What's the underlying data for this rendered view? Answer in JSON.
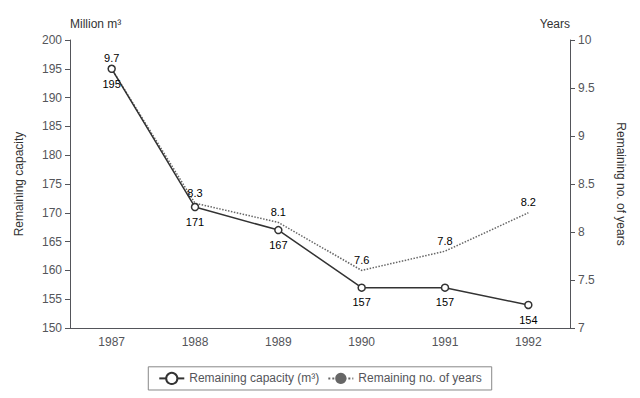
{
  "chart_data": {
    "type": "line",
    "categories": [
      "1987",
      "1988",
      "1989",
      "1990",
      "1991",
      "1992"
    ],
    "series": [
      {
        "name": "Remaining capacity (m³)",
        "color": "#333333",
        "marker": "circle",
        "line_style": "solid",
        "values": [
          195,
          171,
          167,
          157,
          157,
          154
        ]
      },
      {
        "name": "Remaining no. of years",
        "color": "#666666",
        "marker": "none",
        "line_style": "dotted",
        "axis": "y2",
        "values": [
          9.7,
          8.3,
          8.1,
          7.6,
          7.8,
          8.2
        ]
      }
    ],
    "ylabel": "Remaining capacity",
    "y2label": "Remaining no. of years",
    "annotations": [
      "Million m³",
      "Years"
    ],
    "ylim": [
      150,
      200
    ],
    "yticks": [
      150,
      155,
      160,
      165,
      170,
      175,
      180,
      185,
      190,
      195,
      200
    ],
    "y2lim": [
      7,
      10
    ],
    "y2ticks": [
      7,
      7.5,
      8,
      8.5,
      9,
      9.5,
      10
    ],
    "grid": false,
    "legend": "bottom",
    "data_labels": true
  }
}
